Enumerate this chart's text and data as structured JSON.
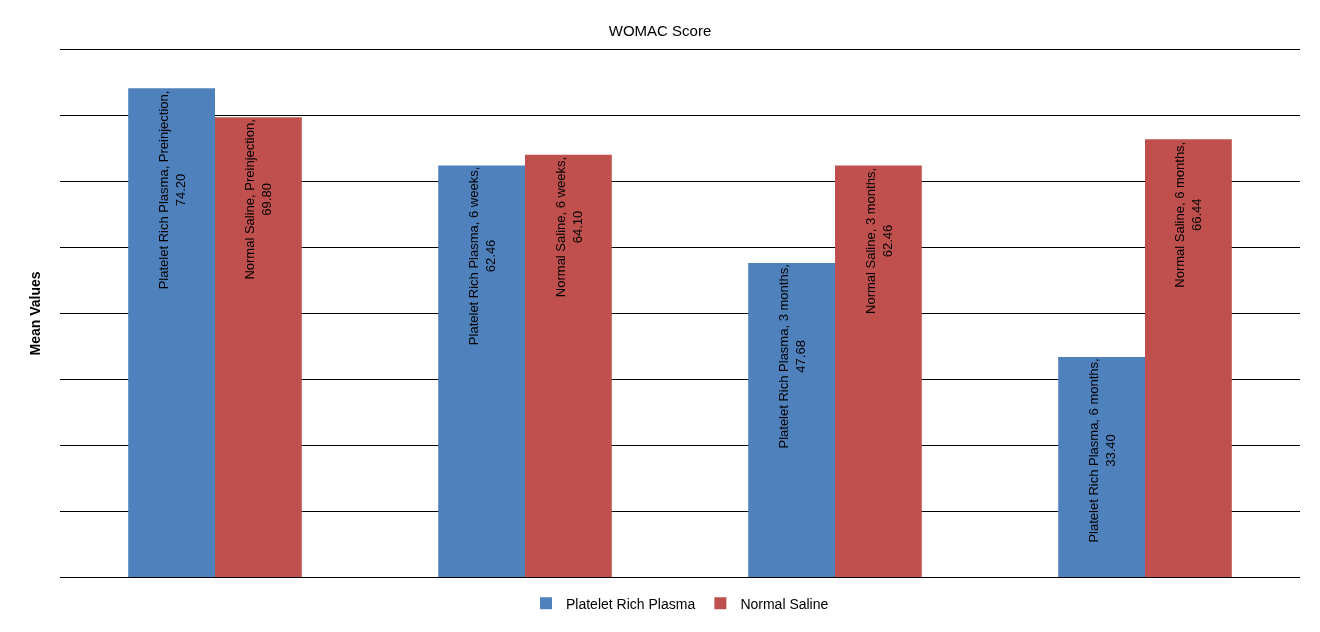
{
  "chart_data": {
    "type": "bar",
    "title": "WOMAC Score",
    "ylabel": "Mean Values",
    "categories": [
      null,
      null,
      null,
      null
    ],
    "series": [
      {
        "name": "Platelet Rich Plasma",
        "color": "#4f81bd",
        "values": [
          74.2,
          62.46,
          47.68,
          33.4
        ],
        "value_labels": [
          "Platelet Rich Plasma, Preinjection, 74.20",
          "Platelet Rich Plasma, 6 weeks, 62.46",
          "Platelet Rich Plasma, 3 months, 47.68",
          "Platelet Rich Plasma, 6 months, 33.40"
        ]
      },
      {
        "name": "Normal Saline",
        "color": "#c0504d",
        "values": [
          69.8,
          64.1,
          62.46,
          66.44
        ],
        "value_labels": [
          "Normal Saline, Preinjection, 69.80",
          "Normal Saline, 6 weeks, 64.10",
          "Normal Saline, 3 months, 62.46",
          "Normal Saline, 6 months, 66.44"
        ]
      }
    ],
    "ylim": [
      0,
      80
    ],
    "yticks": [
      {
        "value": 10,
        "label": null
      },
      {
        "value": 20,
        "label": null
      },
      {
        "value": 30,
        "label": null
      },
      {
        "value": 40,
        "label": null
      },
      {
        "value": 50,
        "label": null
      },
      {
        "value": 60,
        "label": null
      },
      {
        "value": 70,
        "label": null
      }
    ],
    "grid": "y",
    "legend": "bottom"
  }
}
